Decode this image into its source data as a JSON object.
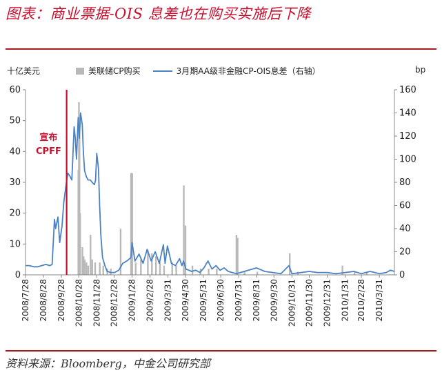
{
  "header": {
    "title": "图表：商业票据-OIS 息差也在购买实施后下降"
  },
  "footer": {
    "source": "资料来源：Bloomberg，中金公司研究部"
  },
  "units": {
    "left": "十亿美元",
    "right": "bp"
  },
  "legend": {
    "bar": "美联储CP购买",
    "line": "3月期AA级非金融CP-OIS息差（右轴）"
  },
  "annotation": {
    "line1": "宣布",
    "line2": "CPFF"
  },
  "colors": {
    "bar": "#b9b9b9",
    "line": "#4a82c3",
    "marker": "#c8102e",
    "title": "#c8102e"
  },
  "chart_data": {
    "type": "bar+line",
    "x_tick_labels": [
      "2008/7/28",
      "2008/8/28",
      "2008/9/28",
      "2008/10/28",
      "2008/11/28",
      "2008/12/28",
      "2009/1/28",
      "2009/2/28",
      "2009/3/31",
      "2009/4/30",
      "2009/5/31",
      "2009/6/30",
      "2009/7/31",
      "2009/8/31",
      "2009/9/30",
      "2009/10/31",
      "2009/11/30",
      "2009/12/31",
      "2010/1/31",
      "2010/2/28",
      "2010/3/31"
    ],
    "ylim_left": [
      0,
      60
    ],
    "ylim_right": [
      0,
      160
    ],
    "yticks_left": [
      0,
      10,
      20,
      30,
      40,
      50,
      60
    ],
    "yticks_right": [
      0,
      20,
      40,
      60,
      80,
      100,
      120,
      140,
      160
    ],
    "event_marker_date": "2008/10/7",
    "bars": [
      [
        "2008/10/27",
        34
      ],
      [
        "2008/10/28",
        56
      ],
      [
        "2008/10/29",
        52
      ],
      [
        "2008/10/30",
        20
      ],
      [
        "2008/11/3",
        9
      ],
      [
        "2008/11/5",
        6
      ],
      [
        "2008/11/7",
        5
      ],
      [
        "2008/11/10",
        4
      ],
      [
        "2008/11/13",
        3
      ],
      [
        "2008/11/17",
        13
      ],
      [
        "2008/11/20",
        5
      ],
      [
        "2008/11/25",
        4
      ],
      [
        "2008/12/3",
        4
      ],
      [
        "2008/12/9",
        3
      ],
      [
        "2008/12/16",
        2
      ],
      [
        "2008/12/22",
        2
      ],
      [
        "2009/1/8",
        15
      ],
      [
        "2009/1/26",
        33
      ],
      [
        "2009/1/28",
        33
      ],
      [
        "2009/2/3",
        4
      ],
      [
        "2009/2/12",
        5
      ],
      [
        "2009/2/24",
        8
      ],
      [
        "2009/3/3",
        7
      ],
      [
        "2009/3/10",
        6
      ],
      [
        "2009/3/17",
        4
      ],
      [
        "2009/3/24",
        3
      ],
      [
        "2009/4/7",
        4
      ],
      [
        "2009/4/14",
        3
      ],
      [
        "2009/4/27",
        29
      ],
      [
        "2009/4/30",
        16
      ],
      [
        "2009/5/12",
        3
      ],
      [
        "2009/5/26",
        2
      ],
      [
        "2009/6/9",
        2
      ],
      [
        "2009/6/23",
        2
      ],
      [
        "2009/7/27",
        13
      ],
      [
        "2009/7/29",
        12
      ],
      [
        "2009/8/10",
        1
      ],
      [
        "2009/9/1",
        1
      ],
      [
        "2009/10/27",
        7
      ],
      [
        "2009/11/10",
        1
      ],
      [
        "2010/1/26",
        3
      ],
      [
        "2010/2/16",
        1
      ],
      [
        "2010/3/9",
        1
      ]
    ],
    "line": [
      [
        "2008/7/28",
        8
      ],
      [
        "2008/8/4",
        8
      ],
      [
        "2008/8/11",
        7
      ],
      [
        "2008/8/18",
        7
      ],
      [
        "2008/8/25",
        8
      ],
      [
        "2008/9/1",
        9
      ],
      [
        "2008/9/8",
        8
      ],
      [
        "2008/9/12",
        9
      ],
      [
        "2008/9/16",
        48
      ],
      [
        "2008/9/18",
        40
      ],
      [
        "2008/9/22",
        50
      ],
      [
        "2008/9/25",
        28
      ],
      [
        "2008/9/29",
        42
      ],
      [
        "2008/10/2",
        62
      ],
      [
        "2008/10/6",
        78
      ],
      [
        "2008/10/9",
        88
      ],
      [
        "2008/10/13",
        85
      ],
      [
        "2008/10/16",
        82
      ],
      [
        "2008/10/20",
        128
      ],
      [
        "2008/10/22",
        118
      ],
      [
        "2008/10/24",
        100
      ],
      [
        "2008/10/27",
        136
      ],
      [
        "2008/10/29",
        118
      ],
      [
        "2008/10/31",
        140
      ],
      [
        "2008/11/3",
        130
      ],
      [
        "2008/11/5",
        105
      ],
      [
        "2008/11/7",
        90
      ],
      [
        "2008/11/10",
        85
      ],
      [
        "2008/11/13",
        82
      ],
      [
        "2008/11/17",
        82
      ],
      [
        "2008/11/20",
        80
      ],
      [
        "2008/11/24",
        78
      ],
      [
        "2008/11/26",
        82
      ],
      [
        "2008/11/28",
        105
      ],
      [
        "2008/12/1",
        92
      ],
      [
        "2008/12/3",
        60
      ],
      [
        "2008/12/5",
        35
      ],
      [
        "2008/12/8",
        15
      ],
      [
        "2008/12/12",
        8
      ],
      [
        "2008/12/16",
        3
      ],
      [
        "2008/12/22",
        2
      ],
      [
        "2008/12/29",
        2
      ],
      [
        "2009/1/5",
        4
      ],
      [
        "2009/1/12",
        10
      ],
      [
        "2009/1/19",
        12
      ],
      [
        "2009/1/26",
        15
      ],
      [
        "2009/1/28",
        28
      ],
      [
        "2009/2/2",
        12
      ],
      [
        "2009/2/9",
        18
      ],
      [
        "2009/2/16",
        10
      ],
      [
        "2009/2/23",
        22
      ],
      [
        "2009/3/2",
        12
      ],
      [
        "2009/3/9",
        20
      ],
      [
        "2009/3/16",
        10
      ],
      [
        "2009/3/23",
        26
      ],
      [
        "2009/3/26",
        10
      ],
      [
        "2009/3/30",
        25
      ],
      [
        "2009/4/6",
        10
      ],
      [
        "2009/4/13",
        8
      ],
      [
        "2009/4/20",
        14
      ],
      [
        "2009/4/24",
        8
      ],
      [
        "2009/4/27",
        12
      ],
      [
        "2009/5/1",
        5
      ],
      [
        "2009/5/11",
        3
      ],
      [
        "2009/5/18",
        4
      ],
      [
        "2009/5/25",
        2
      ],
      [
        "2009/6/1",
        6
      ],
      [
        "2009/6/8",
        12
      ],
      [
        "2009/6/15",
        5
      ],
      [
        "2009/6/22",
        8
      ],
      [
        "2009/6/29",
        4
      ],
      [
        "2009/7/6",
        6
      ],
      [
        "2009/7/13",
        3
      ],
      [
        "2009/7/20",
        2
      ],
      [
        "2009/7/27",
        1
      ],
      [
        "2009/8/3",
        2
      ],
      [
        "2009/8/17",
        4
      ],
      [
        "2009/8/31",
        6
      ],
      [
        "2009/9/14",
        3
      ],
      [
        "2009/9/28",
        2
      ],
      [
        "2009/10/12",
        1
      ],
      [
        "2009/10/26",
        8
      ],
      [
        "2009/10/31",
        1
      ],
      [
        "2009/11/16",
        2
      ],
      [
        "2009/11/30",
        3
      ],
      [
        "2009/12/14",
        2
      ],
      [
        "2009/12/31",
        2
      ],
      [
        "2010/1/15",
        1
      ],
      [
        "2010/1/31",
        2
      ],
      [
        "2010/2/15",
        3
      ],
      [
        "2010/2/28",
        1
      ],
      [
        "2010/3/15",
        3
      ],
      [
        "2010/3/31",
        1
      ],
      [
        "2010/4/12",
        2
      ],
      [
        "2010/4/19",
        4
      ],
      [
        "2010/4/26",
        3
      ]
    ]
  }
}
